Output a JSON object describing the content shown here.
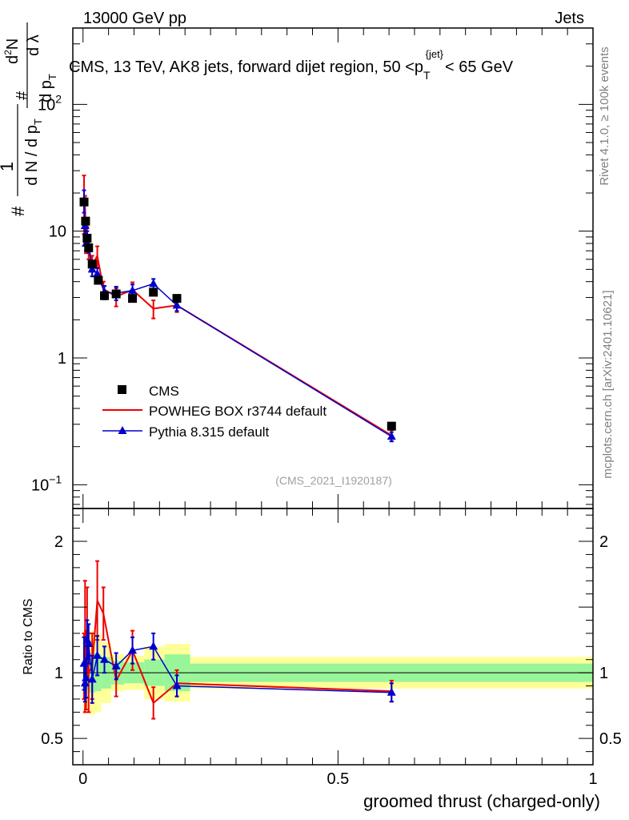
{
  "header": {
    "left": "13000 GeV pp",
    "right": "Jets"
  },
  "plot_title": {
    "main": "CMS, 13 TeV, AK8 jets, forward dijet region, 50 <p",
    "sub": "T",
    "sup": "{jet}",
    "tail": "< 65 GeV"
  },
  "side_labels": {
    "rivet": "Rivet 4.1.0, ≥ 100k events",
    "mcplots": "mcplots.cern.ch [arXiv:2401.10621]"
  },
  "analysis_id": "(CMS_2021_I1920187)",
  "ylabel_main": {
    "hash1": "#",
    "one": "1",
    "den1": "d N / d p",
    "den1_sub": "T",
    "hash2": "#",
    "num2": "d p",
    "num2_sub": "T",
    "num3": "d",
    "num3_sup": "2",
    "num3_tail": "N",
    "den3": "d λ"
  },
  "ylabel_ratio": "Ratio to CMS",
  "xlabel": "groomed thrust (charged-only)",
  "legend": {
    "cms": "CMS",
    "powheg": "POWHEG BOX r3744 default",
    "pythia": "Pythia 8.315 default"
  },
  "colors": {
    "cms": "#000000",
    "powheg": "#ee0000",
    "pythia": "#0000cc",
    "band_inner": "#99f599",
    "band_outer": "#ffff99"
  },
  "chart_data": {
    "type": "line",
    "x_range": [
      -0.02,
      1.0
    ],
    "main_ylim": [
      0.065,
      400
    ],
    "main_yscale": "log",
    "main_yticks": [
      {
        "value": 0.1,
        "label": "10",
        "sup": "−1"
      },
      {
        "value": 1,
        "label": "1",
        "sup": ""
      },
      {
        "value": 10,
        "label": "10",
        "sup": ""
      },
      {
        "value": 100,
        "label": "10",
        "sup": "2"
      }
    ],
    "ratio_ylim": [
      0.3,
      2.25
    ],
    "ratio_yticks": [
      {
        "value": 0.5,
        "label": "0.5"
      },
      {
        "value": 1,
        "label": "1"
      },
      {
        "value": 2,
        "label": "2"
      }
    ],
    "xticks": [
      {
        "value": 0,
        "label": "0"
      },
      {
        "value": 0.5,
        "label": "0.5"
      },
      {
        "value": 1,
        "label": "1"
      }
    ],
    "bins": [
      {
        "lo": 0.0,
        "hi": 0.003,
        "cms": 17.0,
        "inner": 0.16,
        "outer": 0.3
      },
      {
        "lo": 0.003,
        "hi": 0.006,
        "cms": 12.0,
        "inner": 0.15,
        "outer": 0.28
      },
      {
        "lo": 0.006,
        "hi": 0.009,
        "cms": 8.8,
        "inner": 0.13,
        "outer": 0.27
      },
      {
        "lo": 0.009,
        "hi": 0.012,
        "cms": 7.4,
        "inner": 0.12,
        "outer": 0.25
      },
      {
        "lo": 0.012,
        "hi": 0.024,
        "cms": 5.5,
        "inner": 0.15,
        "outer": 0.32
      },
      {
        "lo": 0.024,
        "hi": 0.036,
        "cms": 4.1,
        "inner": 0.14,
        "outer": 0.3
      },
      {
        "lo": 0.036,
        "hi": 0.055,
        "cms": 3.1,
        "inner": 0.12,
        "outer": 0.23
      },
      {
        "lo": 0.055,
        "hi": 0.08,
        "cms": 3.2,
        "inner": 0.09,
        "outer": 0.14
      },
      {
        "lo": 0.08,
        "hi": 0.12,
        "cms": 2.95,
        "inner": 0.08,
        "outer": 0.13
      },
      {
        "lo": 0.12,
        "hi": 0.16,
        "cms": 3.3,
        "inner": 0.1,
        "outer": 0.2
      },
      {
        "lo": 0.16,
        "hi": 0.21,
        "cms": 2.95,
        "inner": 0.14,
        "outer": 0.22
      },
      {
        "lo": 0.21,
        "hi": 1.0,
        "cms": 0.29,
        "inner": 0.07,
        "outer": 0.12
      }
    ],
    "series": [
      {
        "name": "CMS",
        "style": "markers",
        "x": [
          0.002,
          0.005,
          0.008,
          0.011,
          0.018,
          0.03,
          0.042,
          0.065,
          0.097,
          0.138,
          0.184,
          0.605
        ],
        "y": [
          17.0,
          12.0,
          8.8,
          7.4,
          5.5,
          4.1,
          3.1,
          3.2,
          2.95,
          3.3,
          2.95,
          0.29
        ]
      },
      {
        "name": "POWHEG BOX r3744 default",
        "style": "line",
        "x": [
          0.002,
          0.004,
          0.006,
          0.008,
          0.011,
          0.018,
          0.028,
          0.04,
          0.065,
          0.097,
          0.138,
          0.184,
          0.605
        ],
        "y": [
          18.5,
          15.0,
          9.2,
          8.8,
          7.5,
          5.4,
          6.4,
          3.5,
          3.05,
          3.45,
          2.45,
          2.6,
          0.245
        ],
        "err": [
          9.0,
          4.0,
          2.5,
          2.0,
          1.5,
          1.0,
          1.2,
          0.5,
          0.5,
          0.5,
          0.4,
          0.3,
          0.025
        ],
        "ratio": [
          1.05,
          1.2,
          1.02,
          1.3,
          1.0,
          1.05,
          1.55,
          1.45,
          0.94,
          1.17,
          0.77,
          0.92,
          0.86
        ],
        "ratio_err": [
          0.25,
          0.5,
          0.3,
          0.35,
          0.3,
          0.25,
          0.3,
          0.2,
          0.12,
          0.15,
          0.12,
          0.1,
          0.08
        ]
      },
      {
        "name": "Pythia 8.315 default",
        "style": "line+triangles",
        "x": [
          0.002,
          0.004,
          0.006,
          0.008,
          0.011,
          0.018,
          0.028,
          0.042,
          0.065,
          0.097,
          0.138,
          0.184,
          0.605
        ],
        "y": [
          17.5,
          11.0,
          8.0,
          9.0,
          7.6,
          5.0,
          4.6,
          3.3,
          3.25,
          3.4,
          3.85,
          2.6,
          0.24
        ],
        "err": [
          3.5,
          1.5,
          1.0,
          1.0,
          0.8,
          0.6,
          0.5,
          0.4,
          0.4,
          0.4,
          0.35,
          0.25,
          0.02
        ],
        "ratio": [
          1.07,
          0.92,
          0.96,
          1.25,
          1.22,
          0.95,
          1.13,
          1.1,
          1.05,
          1.17,
          1.2,
          0.9,
          0.85
        ],
        "ratio_err": [
          0.2,
          0.14,
          0.15,
          0.15,
          0.15,
          0.18,
          0.15,
          0.1,
          0.1,
          0.1,
          0.1,
          0.08,
          0.07
        ]
      }
    ]
  }
}
